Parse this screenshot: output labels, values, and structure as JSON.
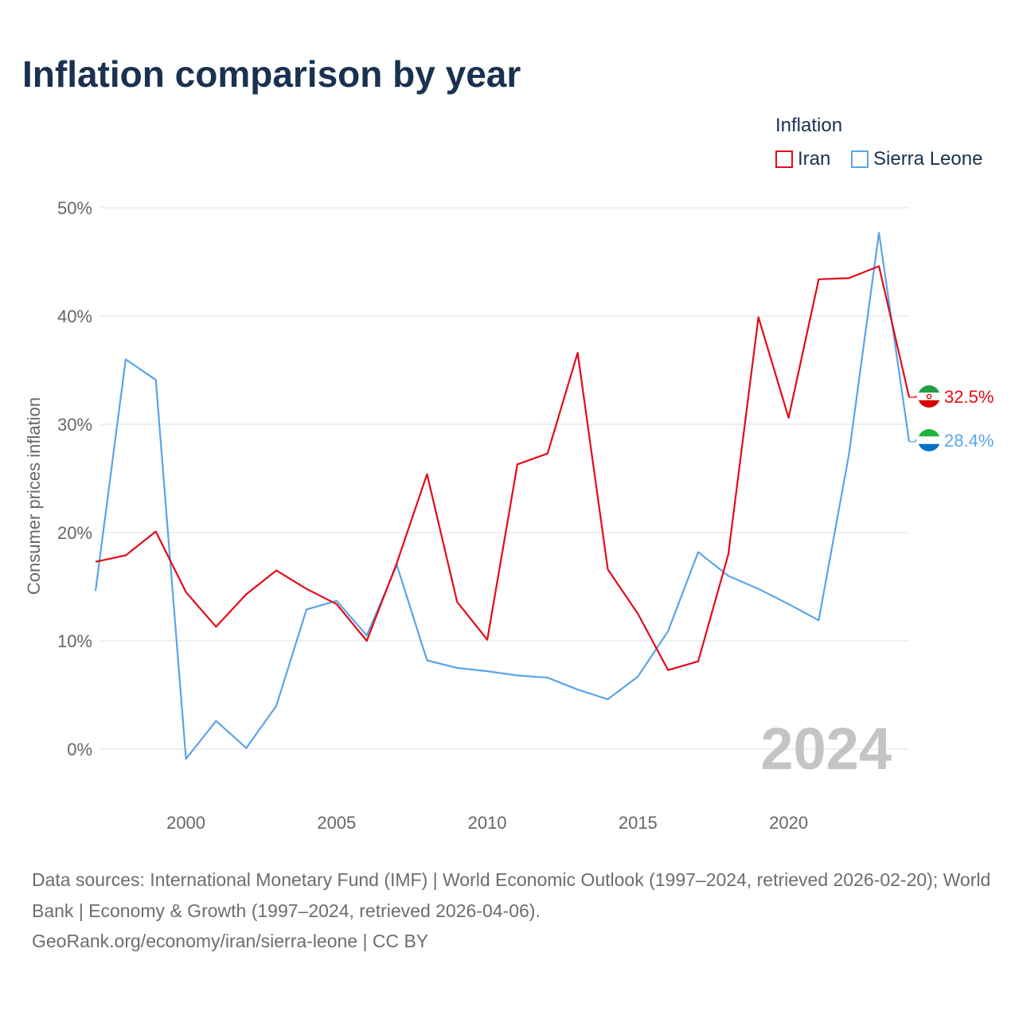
{
  "title": "Inflation comparison by year",
  "legend": {
    "title": "Inflation",
    "items": [
      {
        "label": "Iran",
        "color": "#e30a17"
      },
      {
        "label": "Sierra Leone",
        "color": "#5ba4e8"
      }
    ]
  },
  "chart_data": {
    "type": "line",
    "title": "Inflation comparison by year",
    "xlabel": "",
    "ylabel": "Consumer prices inflation",
    "xlim": [
      1997,
      2024
    ],
    "ylim": [
      -5,
      52
    ],
    "y_ticks": [
      0,
      10,
      20,
      30,
      40,
      50
    ],
    "y_tick_labels": [
      "0%",
      "10%",
      "20%",
      "30%",
      "40%",
      "50%"
    ],
    "x_ticks": [
      2000,
      2005,
      2010,
      2015,
      2020
    ],
    "x_tick_labels": [
      "2000",
      "2005",
      "2010",
      "2015",
      "2020"
    ],
    "grid": true,
    "year_label": "2024",
    "x": [
      1997,
      1998,
      1999,
      2000,
      2001,
      2002,
      2003,
      2004,
      2005,
      2006,
      2007,
      2008,
      2009,
      2010,
      2011,
      2012,
      2013,
      2014,
      2015,
      2016,
      2017,
      2018,
      2019,
      2020,
      2021,
      2022,
      2023,
      2024
    ],
    "series": [
      {
        "name": "Iran",
        "color": "#e30a17",
        "end_label": "32.5%",
        "flag": "iran-flag-icon",
        "values": [
          17.3,
          17.9,
          20.1,
          14.5,
          11.3,
          14.3,
          16.5,
          14.8,
          13.4,
          10.0,
          17.2,
          25.4,
          13.6,
          10.1,
          26.3,
          27.3,
          36.6,
          16.6,
          12.5,
          7.3,
          8.1,
          18.0,
          39.9,
          30.6,
          43.4,
          43.5,
          44.6,
          32.5
        ]
      },
      {
        "name": "Sierra Leone",
        "color": "#5ba4e8",
        "end_label": "28.4%",
        "flag": "sierra-leone-flag-icon",
        "values": [
          14.6,
          36.0,
          34.1,
          -0.9,
          2.6,
          0.1,
          4.0,
          12.9,
          13.7,
          10.5,
          17.0,
          8.2,
          7.5,
          7.2,
          6.8,
          6.6,
          5.5,
          4.6,
          6.7,
          10.9,
          18.2,
          16.0,
          14.8,
          13.4,
          11.9,
          27.2,
          47.7,
          28.4
        ]
      }
    ]
  },
  "source": {
    "line1": "Data sources: International Monetary Fund (IMF) | World Economic Outlook (1997–2024, retrieved 2026-02-20); World Bank | Economy & Growth (1997–2024, retrieved 2026-04-06).",
    "line2": "GeoRank.org/economy/iran/sierra-leone | CC BY"
  }
}
